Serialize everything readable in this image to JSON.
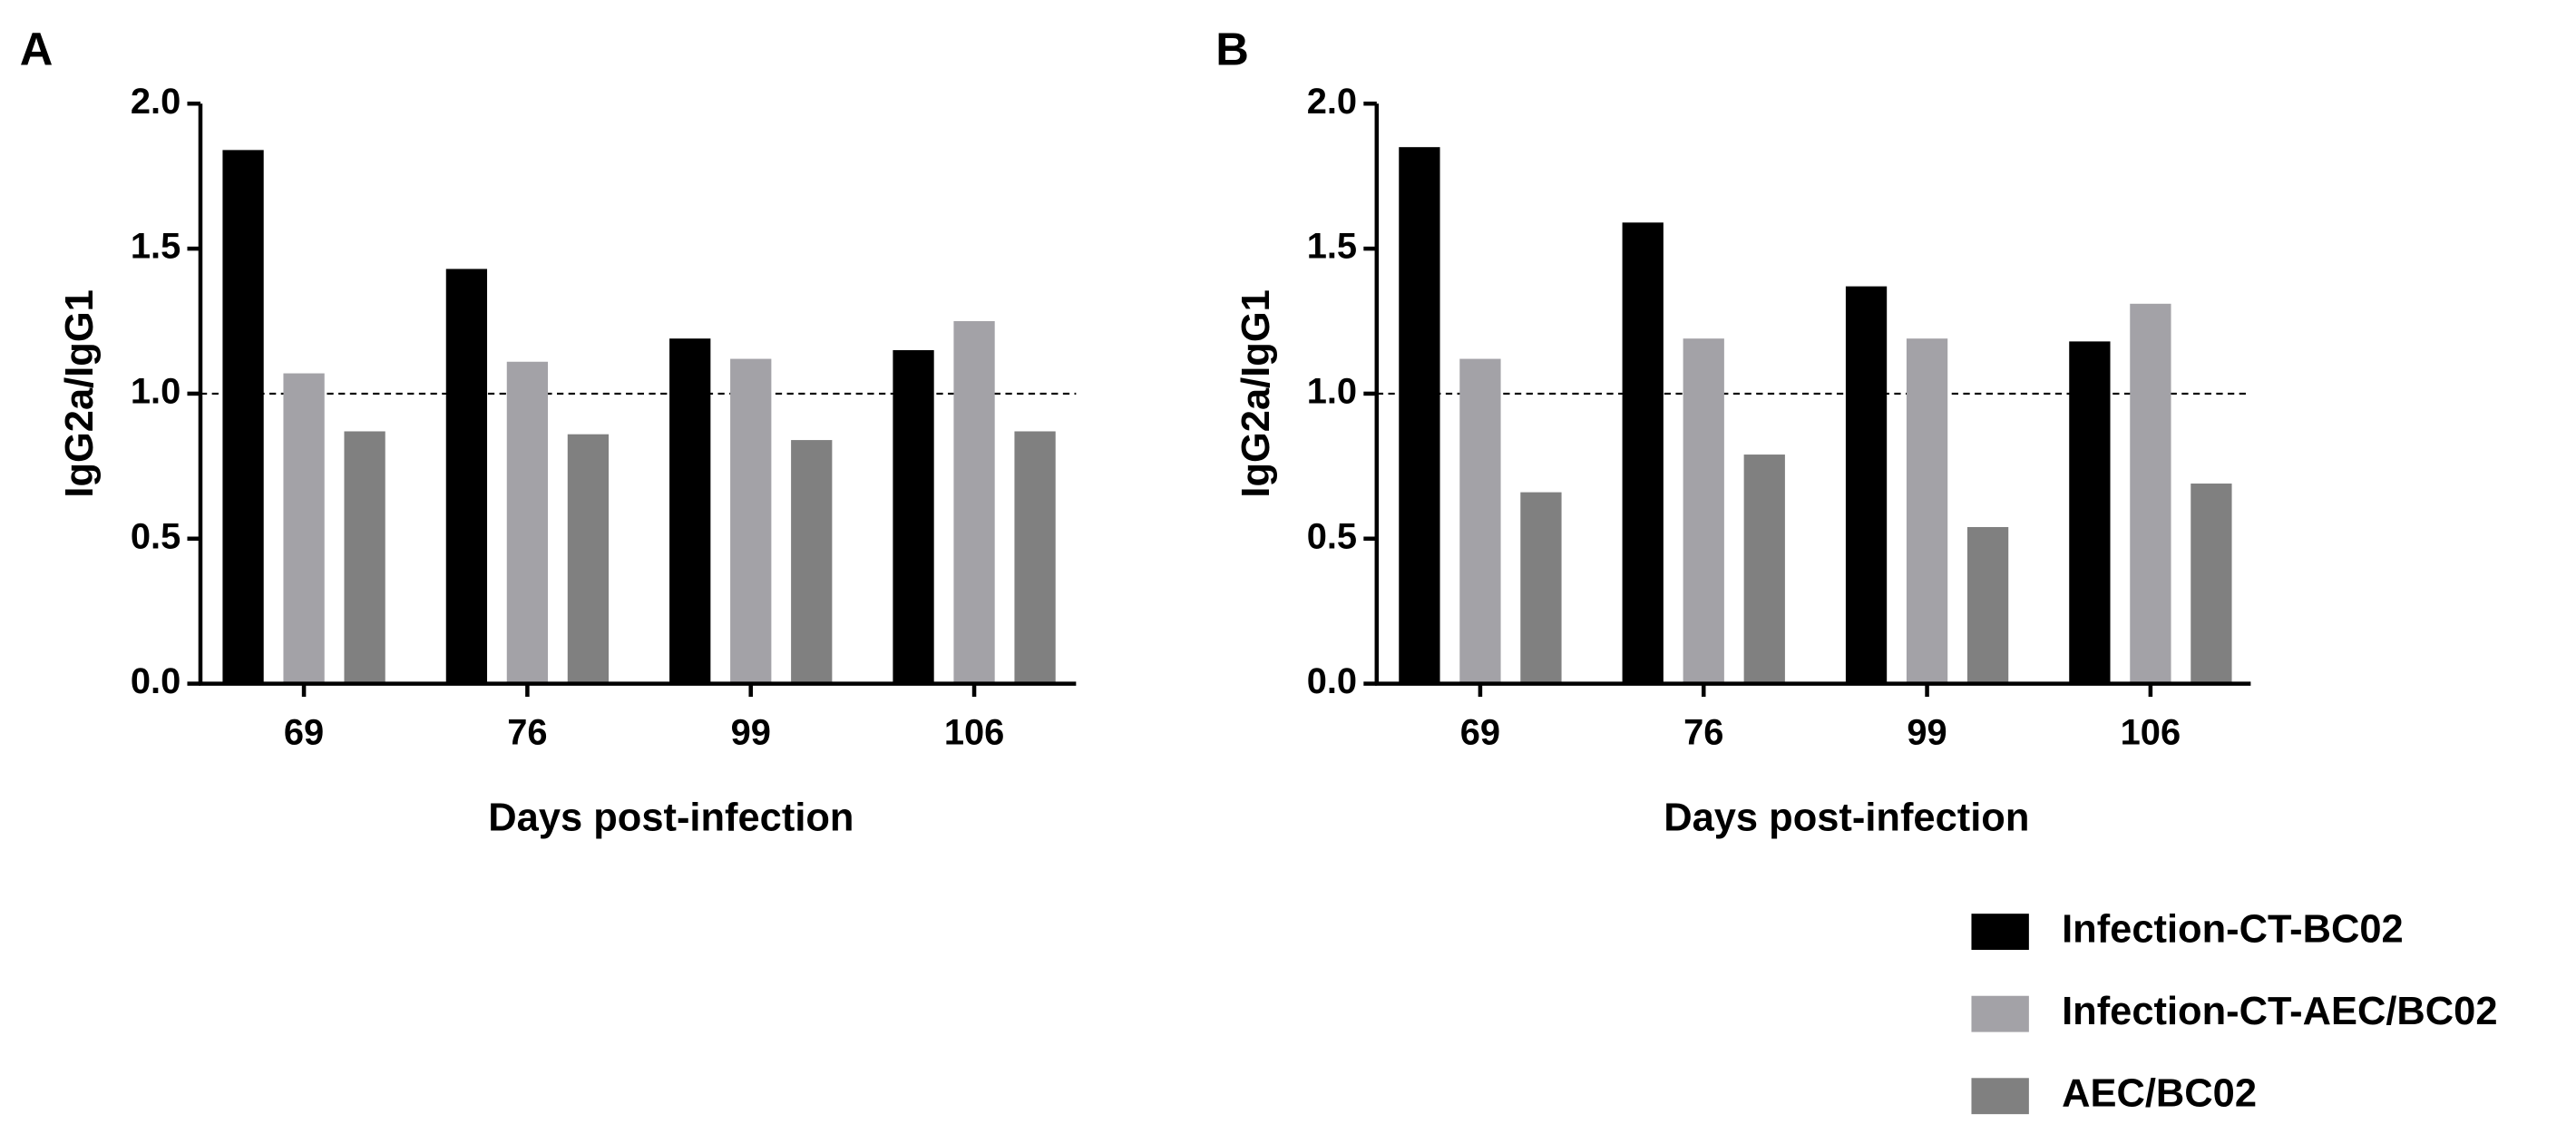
{
  "chart_data": [
    {
      "type": "bar",
      "panel": "A",
      "ylabel": "IgG2a/IgG1",
      "xlabel": "Days post-infection",
      "categories": [
        "69",
        "76",
        "99",
        "106"
      ],
      "series": [
        {
          "name": "Infection-CT-BC02",
          "color": "#000000",
          "values": [
            1.84,
            1.43,
            1.19,
            1.15
          ]
        },
        {
          "name": "Infection-CT-AEC/BC02",
          "color": "#a3a2a7",
          "values": [
            1.07,
            1.11,
            1.12,
            1.25
          ]
        },
        {
          "name": "AEC/BC02",
          "color": "#808080",
          "values": [
            0.87,
            0.86,
            0.84,
            0.87
          ]
        }
      ],
      "ylim": [
        0,
        2
      ],
      "yticks": [
        {
          "value": 0,
          "label": "0.0"
        },
        {
          "value": 0.5,
          "label": "0.5"
        },
        {
          "value": 1,
          "label": "1.0"
        },
        {
          "value": 1.5,
          "label": "1.5"
        },
        {
          "value": 2,
          "label": "2.0"
        }
      ],
      "reference_line": 1
    },
    {
      "type": "bar",
      "panel": "B",
      "ylabel": "IgG2a/IgG1",
      "xlabel": "Days post-infection",
      "categories": [
        "69",
        "76",
        "99",
        "106"
      ],
      "series": [
        {
          "name": "Infection-CT-BC02",
          "color": "#000000",
          "values": [
            1.85,
            1.59,
            1.37,
            1.18
          ]
        },
        {
          "name": "Infection-CT-AEC/BC02",
          "color": "#a3a2a7",
          "values": [
            1.12,
            1.19,
            1.19,
            1.31
          ]
        },
        {
          "name": "AEC/BC02",
          "color": "#808080",
          "values": [
            0.66,
            0.79,
            0.54,
            0.69
          ]
        }
      ],
      "ylim": [
        0,
        2
      ],
      "yticks": [
        {
          "value": 0,
          "label": "0.0"
        },
        {
          "value": 0.5,
          "label": "0.5"
        },
        {
          "value": 1,
          "label": "1.0"
        },
        {
          "value": 1.5,
          "label": "1.5"
        },
        {
          "value": 2,
          "label": "2.0"
        }
      ],
      "reference_line": 1
    }
  ]
}
